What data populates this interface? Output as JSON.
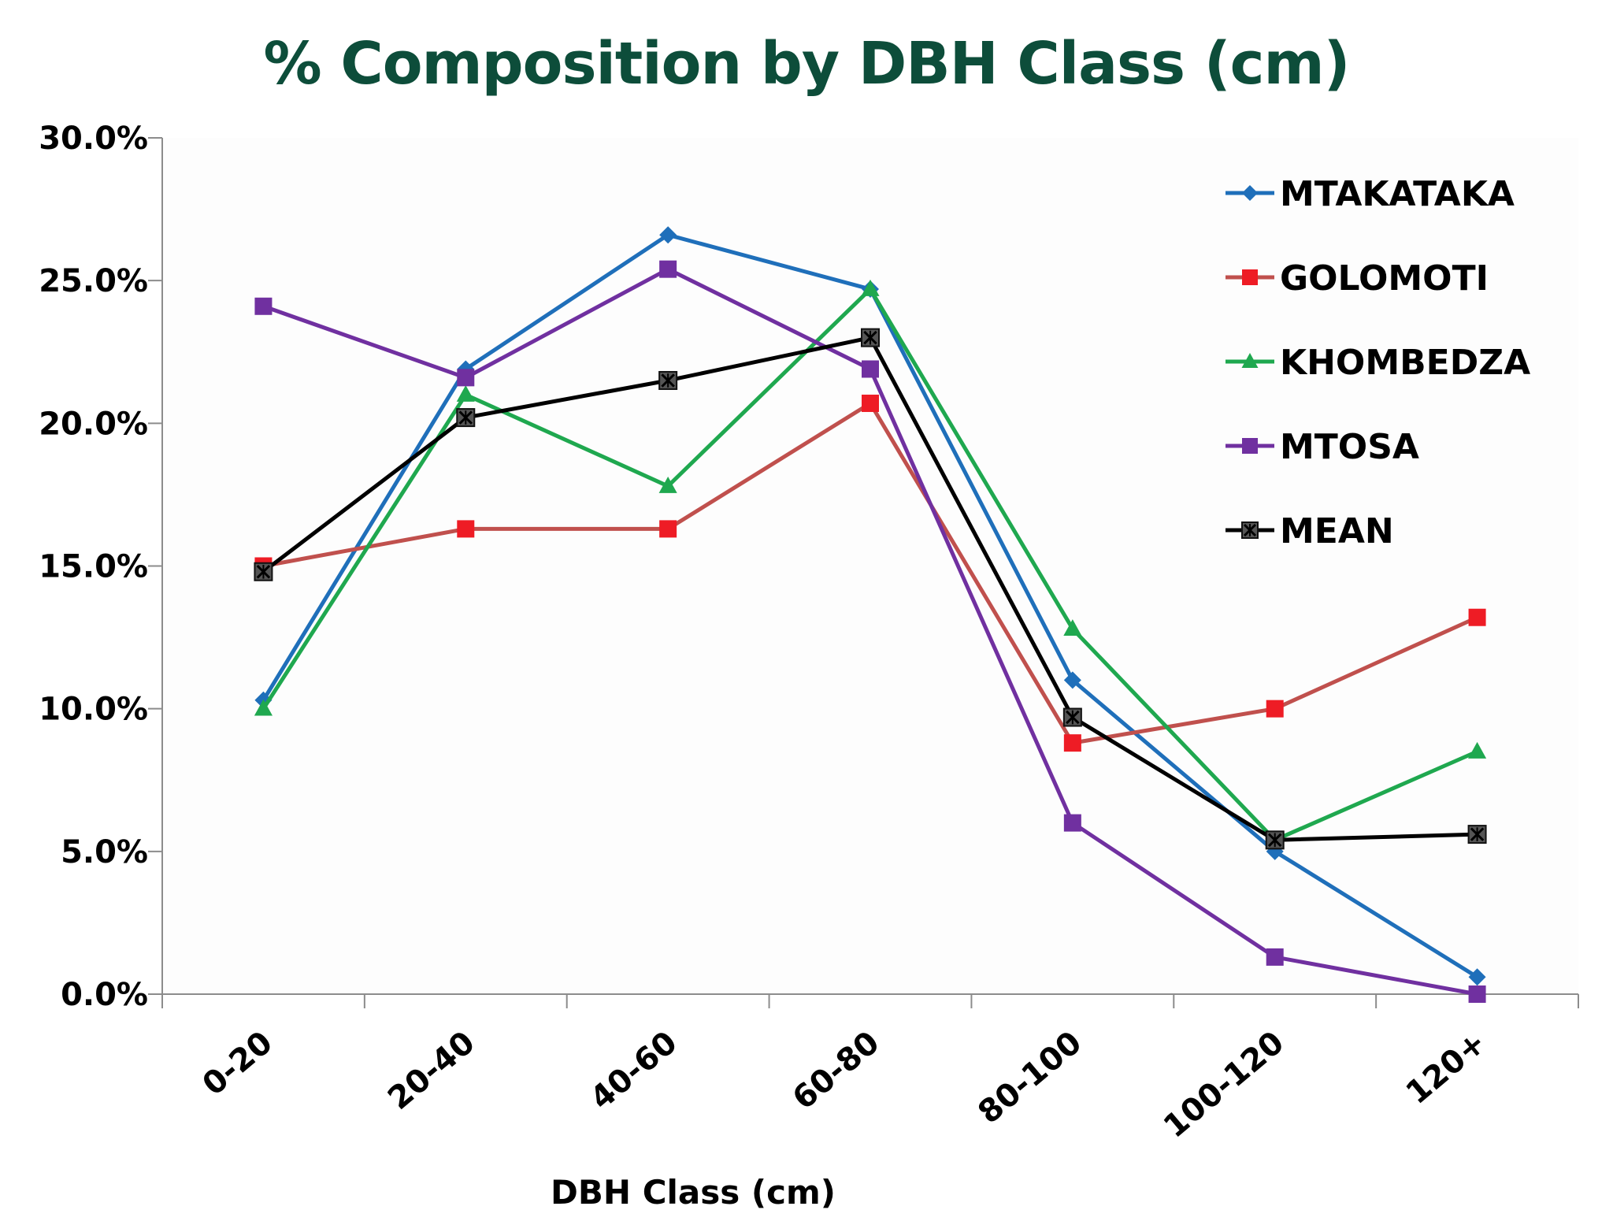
{
  "chart_data": {
    "type": "line",
    "title": "% Composition by DBH Class (cm)",
    "xlabel": "DBH Class (cm)",
    "ylabel": "",
    "ylim": [
      0,
      30
    ],
    "yticks": [
      "0.0%",
      "5.0%",
      "10.0%",
      "15.0%",
      "20.0%",
      "25.0%",
      "30.0%"
    ],
    "grid": false,
    "legend": "right",
    "categories": [
      "0-20",
      "20-40",
      "40-60",
      "60-80",
      "80-100",
      "100-120",
      "120+"
    ],
    "series": [
      {
        "name": "MTAKATAKA",
        "color": "#1f6fba",
        "marker": "diamond",
        "values": [
          10.3,
          21.9,
          26.6,
          24.7,
          11.0,
          5.0,
          0.6
        ]
      },
      {
        "name": "GOLOMOTI",
        "color": "#c0504d",
        "marker_color": "#ee1c25",
        "marker": "square",
        "values": [
          15.0,
          16.3,
          16.3,
          20.7,
          8.8,
          10.0,
          13.2
        ]
      },
      {
        "name": "KHOMBEDZA",
        "color": "#1fa84f",
        "marker": "triangle",
        "values": [
          10.0,
          21.0,
          17.8,
          24.7,
          12.8,
          5.4,
          8.5
        ]
      },
      {
        "name": "MTOSA",
        "color": "#7030a0",
        "marker": "square",
        "values": [
          24.1,
          21.6,
          25.4,
          21.9,
          6.0,
          1.3,
          0.0
        ]
      },
      {
        "name": "MEAN",
        "color": "#000000",
        "marker_color": "#555555",
        "marker": "xsquare",
        "values": [
          14.8,
          20.2,
          21.5,
          23.0,
          9.7,
          5.4,
          5.6
        ]
      }
    ]
  }
}
